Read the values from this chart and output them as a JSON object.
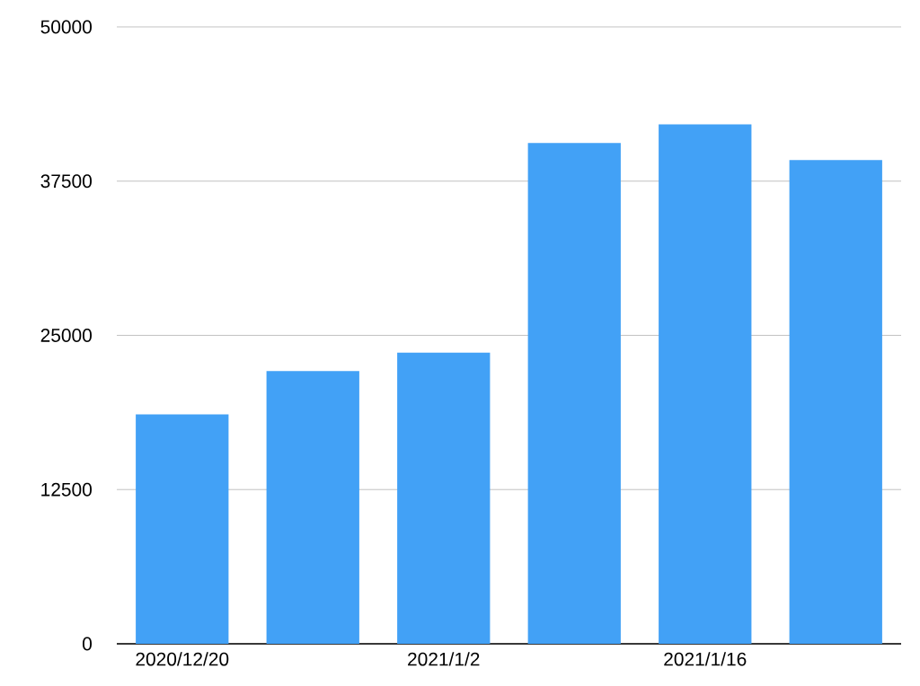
{
  "chart_data": {
    "type": "bar",
    "categories": [
      "2020/12/20",
      null,
      "2021/1/2",
      null,
      "2021/1/16",
      null
    ],
    "values": [
      18600,
      22100,
      23600,
      40600,
      42100,
      39200
    ],
    "color": "#42a1f6",
    "ylim": [
      0,
      50000
    ],
    "yticks": [
      0,
      12500,
      25000,
      37500,
      50000
    ],
    "grid": "y"
  }
}
